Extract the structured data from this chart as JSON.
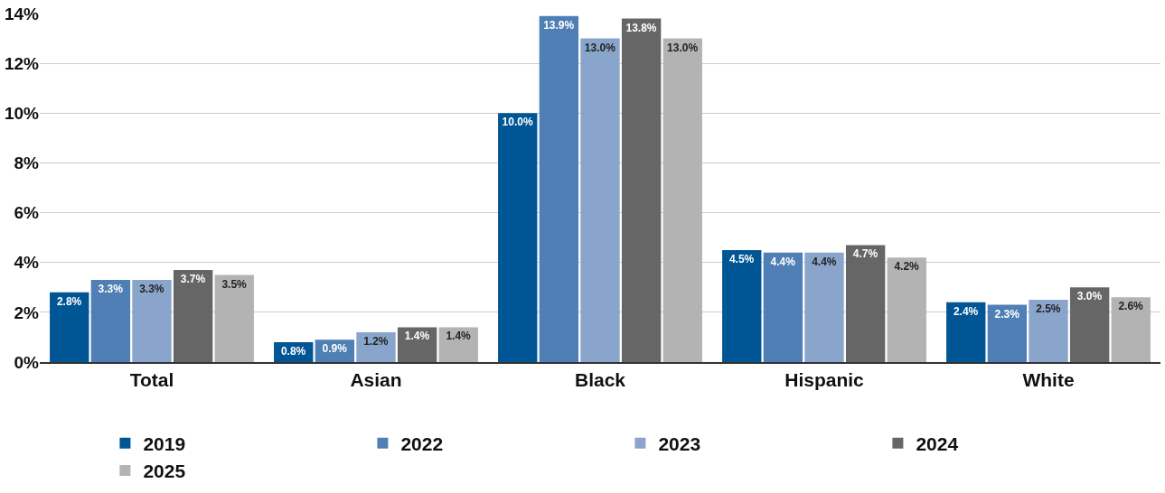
{
  "chart_data": {
    "type": "bar",
    "categories": [
      "Total",
      "Asian",
      "Black",
      "Hispanic",
      "White"
    ],
    "series": [
      {
        "name": "2019",
        "color": "#005595",
        "values": [
          2.8,
          0.8,
          10.0,
          4.5,
          2.4
        ],
        "value_labels": [
          "2.8%",
          "0.8%",
          "10.0%",
          "4.5%",
          "2.4%"
        ]
      },
      {
        "name": "2022",
        "color": "#4f7fb4",
        "values": [
          3.3,
          0.9,
          13.9,
          4.4,
          2.3
        ],
        "value_labels": [
          "3.3%",
          "0.9%",
          "13.9%",
          "4.4%",
          "2.3%"
        ]
      },
      {
        "name": "2023",
        "color": "#8aa5cc",
        "values": [
          3.3,
          1.2,
          13.0,
          4.4,
          2.5
        ],
        "value_labels": [
          "3.3%",
          "1.2%",
          "13.0%",
          "4.4%",
          "2.5%"
        ]
      },
      {
        "name": "2024",
        "color": "#666666",
        "values": [
          3.7,
          1.4,
          13.8,
          4.7,
          3.0
        ],
        "value_labels": [
          "3.7%",
          "1.4%",
          "13.8%",
          "4.7%",
          "3.0%"
        ]
      },
      {
        "name": "2025",
        "color": "#b3b3b3",
        "values": [
          3.5,
          1.4,
          13.0,
          4.2,
          2.6
        ],
        "value_labels": [
          "3.5%",
          "1.4%",
          "13.0%",
          "4.2%",
          "2.6%"
        ]
      }
    ],
    "ylim": [
      0,
      14
    ],
    "yticks": [
      {
        "value": 0,
        "label": "0%"
      },
      {
        "value": 2,
        "label": "2%"
      },
      {
        "value": 4,
        "label": "4%"
      },
      {
        "value": 6,
        "label": "6%"
      },
      {
        "value": 8,
        "label": "8%"
      },
      {
        "value": 10,
        "label": "10%"
      },
      {
        "value": 12,
        "label": "12%"
      },
      {
        "value": 14,
        "label": "14%"
      }
    ],
    "grid": "y",
    "legend": "bottom"
  }
}
